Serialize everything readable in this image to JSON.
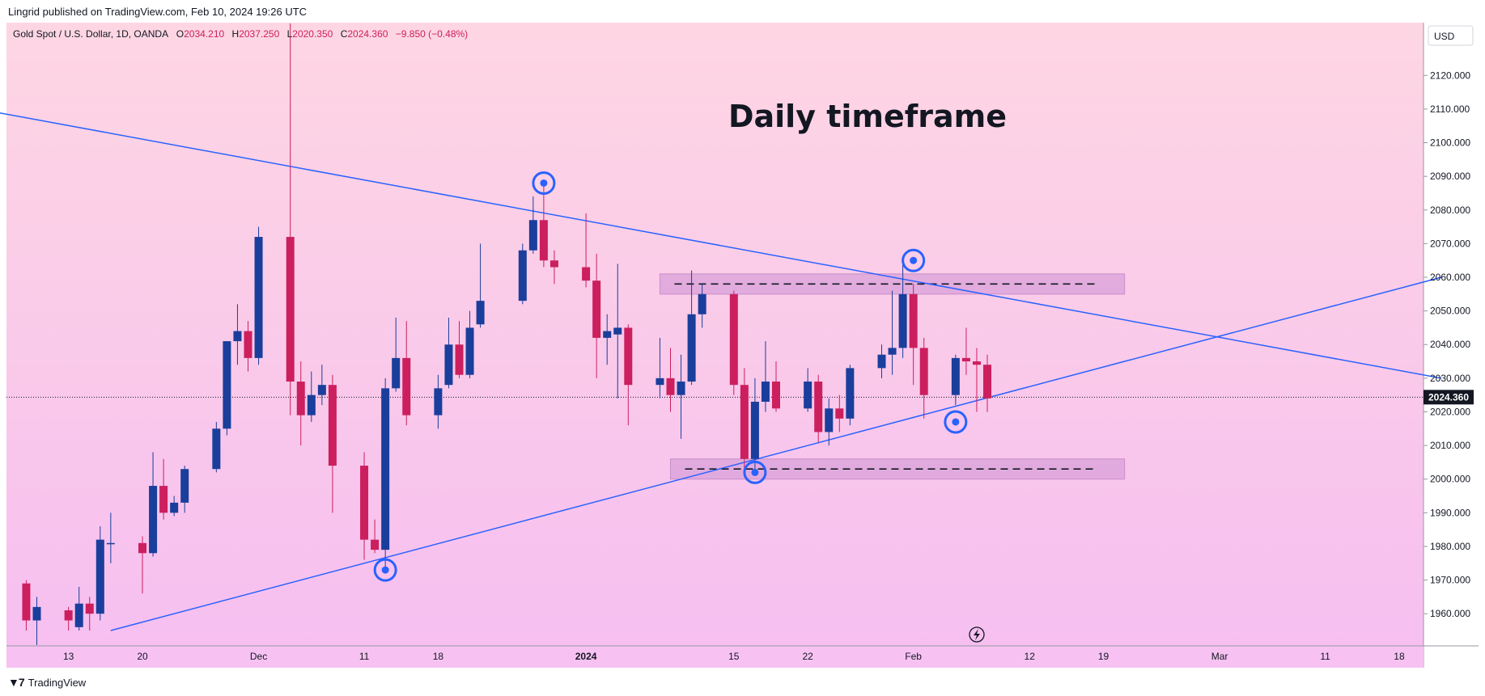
{
  "header": {
    "publisher": "Lingrid published on TradingView.com, Feb 10, 2024 19:26 UTC",
    "symbol_line": "Gold Spot / U.S. Dollar, 1D, OANDA",
    "o_label": "O",
    "o_value": "2034.210",
    "h_label": "H",
    "h_value": "2037.250",
    "l_label": "L",
    "l_value": "2020.350",
    "c_label": "C",
    "c_value": "2024.360",
    "change": "−9.850 (−0.48%)"
  },
  "currency": "USD",
  "annotation": "Daily timeframe",
  "footer": {
    "brand": "TradingView"
  },
  "colors": {
    "up": "#1a3e9b",
    "down": "#cc1f5e",
    "line": "#2962ff",
    "zone": "#d9a0d9",
    "bg_top": "#fed6e3",
    "bg_bottom": "#f6bff0"
  },
  "chart_data": {
    "type": "candlestick",
    "y_range": [
      1955,
      2128
    ],
    "y_ticks": [
      "1960.000",
      "1970.000",
      "1980.000",
      "1990.000",
      "2000.000",
      "2010.000",
      "2020.000",
      "2030.000",
      "2040.000",
      "2050.000",
      "2060.000",
      "2070.000",
      "2080.000",
      "2090.000",
      "2100.000",
      "2110.000",
      "2120.000"
    ],
    "x_ticks": [
      {
        "label": "13",
        "date": "2023-11-13"
      },
      {
        "label": "20",
        "date": "2023-11-20"
      },
      {
        "label": "Dec",
        "date": "2023-12-01"
      },
      {
        "label": "11",
        "date": "2023-12-11"
      },
      {
        "label": "18",
        "date": "2023-12-18"
      },
      {
        "label": "2024",
        "date": "2024-01-01"
      },
      {
        "label": "15",
        "date": "2024-01-15"
      },
      {
        "label": "22",
        "date": "2024-01-22"
      },
      {
        "label": "Feb",
        "date": "2024-02-01"
      },
      {
        "label": "12",
        "date": "2024-02-12"
      },
      {
        "label": "19",
        "date": "2024-02-19"
      },
      {
        "label": "Mar",
        "date": "2024-03-01"
      },
      {
        "label": "11",
        "date": "2024-03-11"
      },
      {
        "label": "18",
        "date": "2024-03-18"
      }
    ],
    "last_price": "2024.360",
    "last_price_value": 2024.36,
    "candles": [
      {
        "date": "2023-11-09",
        "o": 1969,
        "h": 1970,
        "l": 1955,
        "c": 1958
      },
      {
        "date": "2023-11-10",
        "o": 1958,
        "h": 1965,
        "l": 1950,
        "c": 1962
      },
      {
        "date": "2023-11-13",
        "o": 1961,
        "h": 1962,
        "l": 1955,
        "c": 1958
      },
      {
        "date": "2023-11-14",
        "o": 1956,
        "h": 1968,
        "l": 1955,
        "c": 1963
      },
      {
        "date": "2023-11-15",
        "o": 1963,
        "h": 1965,
        "l": 1955,
        "c": 1960
      },
      {
        "date": "2023-11-16",
        "o": 1960,
        "h": 1986,
        "l": 1958,
        "c": 1982
      },
      {
        "date": "2023-11-17",
        "o": 1981,
        "h": 1990,
        "l": 1975,
        "c": 1981
      },
      {
        "date": "2023-11-20",
        "o": 1981,
        "h": 1983,
        "l": 1966,
        "c": 1978
      },
      {
        "date": "2023-11-21",
        "o": 1978,
        "h": 2008,
        "l": 1977,
        "c": 1998
      },
      {
        "date": "2023-11-22",
        "o": 1998,
        "h": 2006,
        "l": 1988,
        "c": 1990
      },
      {
        "date": "2023-11-23",
        "o": 1990,
        "h": 1995,
        "l": 1989,
        "c": 1993
      },
      {
        "date": "2023-11-24",
        "o": 1993,
        "h": 2004,
        "l": 1990,
        "c": 2003
      },
      {
        "date": "2023-11-27",
        "o": 2003,
        "h": 2017,
        "l": 2002,
        "c": 2015
      },
      {
        "date": "2023-11-28",
        "o": 2015,
        "h": 2041,
        "l": 2013,
        "c": 2041
      },
      {
        "date": "2023-11-29",
        "o": 2041,
        "h": 2052,
        "l": 2034,
        "c": 2044
      },
      {
        "date": "2023-11-30",
        "o": 2044,
        "h": 2047,
        "l": 2032,
        "c": 2036
      },
      {
        "date": "2023-12-01",
        "o": 2036,
        "h": 2075,
        "l": 2034,
        "c": 2072
      },
      {
        "date": "2023-12-04",
        "o": 2072,
        "h": 2146,
        "l": 2019,
        "c": 2029
      },
      {
        "date": "2023-12-05",
        "o": 2029,
        "h": 2035,
        "l": 2010,
        "c": 2019
      },
      {
        "date": "2023-12-06",
        "o": 2019,
        "h": 2032,
        "l": 2017,
        "c": 2025
      },
      {
        "date": "2023-12-07",
        "o": 2025,
        "h": 2034,
        "l": 2022,
        "c": 2028
      },
      {
        "date": "2023-12-08",
        "o": 2028,
        "h": 2031,
        "l": 1990,
        "c": 2004
      },
      {
        "date": "2023-12-11",
        "o": 2004,
        "h": 2008,
        "l": 1976,
        "c": 1982
      },
      {
        "date": "2023-12-12",
        "o": 1982,
        "h": 1988,
        "l": 1978,
        "c": 1979
      },
      {
        "date": "2023-12-13",
        "o": 1979,
        "h": 2030,
        "l": 1973,
        "c": 2027
      },
      {
        "date": "2023-12-14",
        "o": 2027,
        "h": 2048,
        "l": 2026,
        "c": 2036
      },
      {
        "date": "2023-12-15",
        "o": 2036,
        "h": 2047,
        "l": 2016,
        "c": 2019
      },
      {
        "date": "2023-12-18",
        "o": 2019,
        "h": 2031,
        "l": 2015,
        "c": 2027
      },
      {
        "date": "2023-12-19",
        "o": 2028,
        "h": 2048,
        "l": 2027,
        "c": 2040
      },
      {
        "date": "2023-12-20",
        "o": 2040,
        "h": 2047,
        "l": 2030,
        "c": 2031
      },
      {
        "date": "2023-12-21",
        "o": 2031,
        "h": 2050,
        "l": 2030,
        "c": 2045
      },
      {
        "date": "2023-12-22",
        "o": 2046,
        "h": 2070,
        "l": 2045,
        "c": 2053
      },
      {
        "date": "2023-12-26",
        "o": 2053,
        "h": 2070,
        "l": 2052,
        "c": 2068
      },
      {
        "date": "2023-12-27",
        "o": 2068,
        "h": 2084,
        "l": 2067,
        "c": 2077
      },
      {
        "date": "2023-12-28",
        "o": 2077,
        "h": 2088,
        "l": 2063,
        "c": 2065
      },
      {
        "date": "2023-12-29",
        "o": 2065,
        "h": 2068,
        "l": 2058,
        "c": 2063
      },
      {
        "date": "2024-01-01",
        "o": 2063,
        "h": 2079,
        "l": 2057,
        "c": 2059
      },
      {
        "date": "2024-01-02",
        "o": 2059,
        "h": 2067,
        "l": 2030,
        "c": 2042
      },
      {
        "date": "2024-01-03",
        "o": 2042,
        "h": 2049,
        "l": 2034,
        "c": 2044
      },
      {
        "date": "2024-01-04",
        "o": 2043,
        "h": 2064,
        "l": 2024,
        "c": 2045
      },
      {
        "date": "2024-01-05",
        "o": 2045,
        "h": 2046,
        "l": 2016,
        "c": 2028
      },
      {
        "date": "2024-01-08",
        "o": 2028,
        "h": 2042,
        "l": 2024,
        "c": 2030
      },
      {
        "date": "2024-01-09",
        "o": 2030,
        "h": 2039,
        "l": 2020,
        "c": 2025
      },
      {
        "date": "2024-01-10",
        "o": 2025,
        "h": 2037,
        "l": 2012,
        "c": 2029
      },
      {
        "date": "2024-01-11",
        "o": 2029,
        "h": 2062,
        "l": 2028,
        "c": 2049
      },
      {
        "date": "2024-01-12",
        "o": 2049,
        "h": 2058,
        "l": 2045,
        "c": 2055
      },
      {
        "date": "2024-01-15",
        "o": 2055,
        "h": 2056,
        "l": 2025,
        "c": 2028
      },
      {
        "date": "2024-01-16",
        "o": 2028,
        "h": 2033,
        "l": 2002,
        "c": 2006
      },
      {
        "date": "2024-01-17",
        "o": 2006,
        "h": 2030,
        "l": 2001,
        "c": 2023
      },
      {
        "date": "2024-01-18",
        "o": 2023,
        "h": 2041,
        "l": 2020,
        "c": 2029
      },
      {
        "date": "2024-01-19",
        "o": 2029,
        "h": 2035,
        "l": 2020,
        "c": 2021
      },
      {
        "date": "2024-01-22",
        "o": 2021,
        "h": 2033,
        "l": 2020,
        "c": 2029
      },
      {
        "date": "2024-01-23",
        "o": 2029,
        "h": 2031,
        "l": 2011,
        "c": 2014
      },
      {
        "date": "2024-01-24",
        "o": 2014,
        "h": 2024,
        "l": 2010,
        "c": 2021
      },
      {
        "date": "2024-01-25",
        "o": 2021,
        "h": 2025,
        "l": 2014,
        "c": 2018
      },
      {
        "date": "2024-01-26",
        "o": 2018,
        "h": 2034,
        "l": 2016,
        "c": 2033
      },
      {
        "date": "2024-01-29",
        "o": 2033,
        "h": 2040,
        "l": 2030,
        "c": 2037
      },
      {
        "date": "2024-01-30",
        "o": 2037,
        "h": 2056,
        "l": 2031,
        "c": 2039
      },
      {
        "date": "2024-01-31",
        "o": 2039,
        "h": 2065,
        "l": 2036,
        "c": 2055
      },
      {
        "date": "2024-02-01",
        "o": 2055,
        "h": 2058,
        "l": 2028,
        "c": 2039
      },
      {
        "date": "2024-02-02",
        "o": 2039,
        "h": 2042,
        "l": 2018,
        "c": 2025
      },
      {
        "date": "2024-02-05",
        "o": 2025,
        "h": 2037,
        "l": 2022,
        "c": 2036
      },
      {
        "date": "2024-02-06",
        "o": 2036,
        "h": 2045,
        "l": 2031,
        "c": 2035
      },
      {
        "date": "2024-02-07",
        "o": 2035,
        "h": 2039,
        "l": 2020,
        "c": 2034
      },
      {
        "date": "2024-02-08",
        "o": 2034,
        "h": 2037,
        "l": 2020,
        "c": 2024
      }
    ],
    "trendlines": [
      {
        "name": "descending-resistance",
        "from": {
          "date": "2023-10-13",
          "value": 2123
        },
        "to": {
          "date": "2024-03-22",
          "value": 2030
        }
      },
      {
        "name": "ascending-support",
        "from": {
          "date": "2023-11-17",
          "value": 1955
        },
        "to": {
          "date": "2024-03-22",
          "value": 2060
        }
      }
    ],
    "zones": [
      {
        "name": "resistance-zone",
        "from": "2024-01-08",
        "to": "2024-02-21",
        "low": 2055,
        "high": 2061,
        "level": 2058
      },
      {
        "name": "support-zone",
        "from": "2024-01-09",
        "to": "2024-02-21",
        "low": 2000,
        "high": 2006,
        "level": 2003
      }
    ],
    "markers": [
      {
        "date": "2023-12-13",
        "value": 1973
      },
      {
        "date": "2023-12-28",
        "value": 2088
      },
      {
        "date": "2024-01-17",
        "value": 2002
      },
      {
        "date": "2024-02-01",
        "value": 2065
      },
      {
        "date": "2024-02-05",
        "value": 2017
      }
    ]
  }
}
